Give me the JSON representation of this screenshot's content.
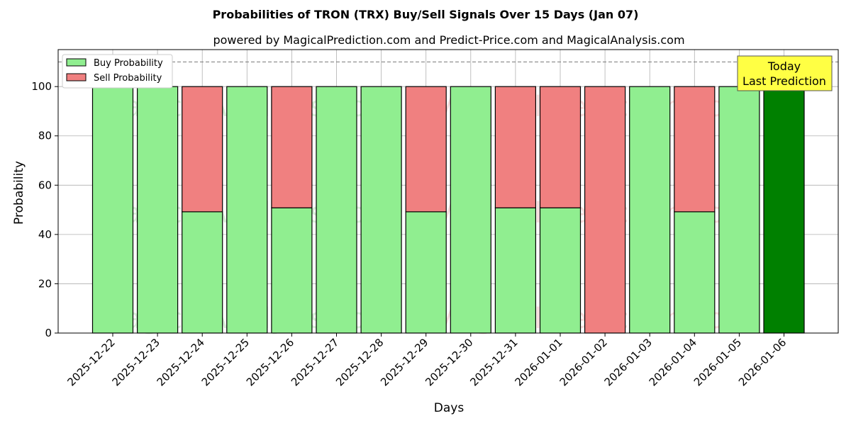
{
  "chart_data": {
    "type": "bar",
    "stacked": true,
    "title": "Probabilities of TRON (TRX) Buy/Sell Signals Over 15 Days (Jan 07)",
    "subtitle": "powered by MagicalPrediction.com and Predict-Price.com and MagicalAnalysis.com",
    "xlabel": "Days",
    "ylabel": "Probability",
    "ylim": [
      0,
      115
    ],
    "yticks": [
      0,
      20,
      40,
      60,
      80,
      100
    ],
    "grid": true,
    "legend_position": "top-left",
    "threshold_line": 110,
    "categories": [
      "2025-12-22",
      "2025-12-23",
      "2025-12-24",
      "2025-12-25",
      "2025-12-26",
      "2025-12-27",
      "2025-12-28",
      "2025-12-29",
      "2025-12-30",
      "2025-12-31",
      "2026-01-01",
      "2026-01-02",
      "2026-01-03",
      "2026-01-04",
      "2026-01-05",
      "2026-01-06"
    ],
    "series": [
      {
        "name": "Buy Probability",
        "color": "#90ee90",
        "values": [
          100,
          100,
          49.2,
          100,
          50.8,
          100,
          100,
          49.2,
          100,
          50.8,
          50.8,
          0,
          100,
          49.2,
          100,
          100
        ]
      },
      {
        "name": "Sell Probability",
        "color": "#f08080",
        "values": [
          0,
          0,
          50.8,
          0,
          49.2,
          0,
          0,
          50.8,
          0,
          49.2,
          49.2,
          100,
          0,
          50.8,
          0,
          0
        ]
      }
    ],
    "today_color": "#008000",
    "annotation": {
      "line1": "Today",
      "line2": "Last Prediction"
    },
    "watermarks": [
      "MagicalAnalysis.com",
      "MagicalPrediction.com"
    ]
  }
}
